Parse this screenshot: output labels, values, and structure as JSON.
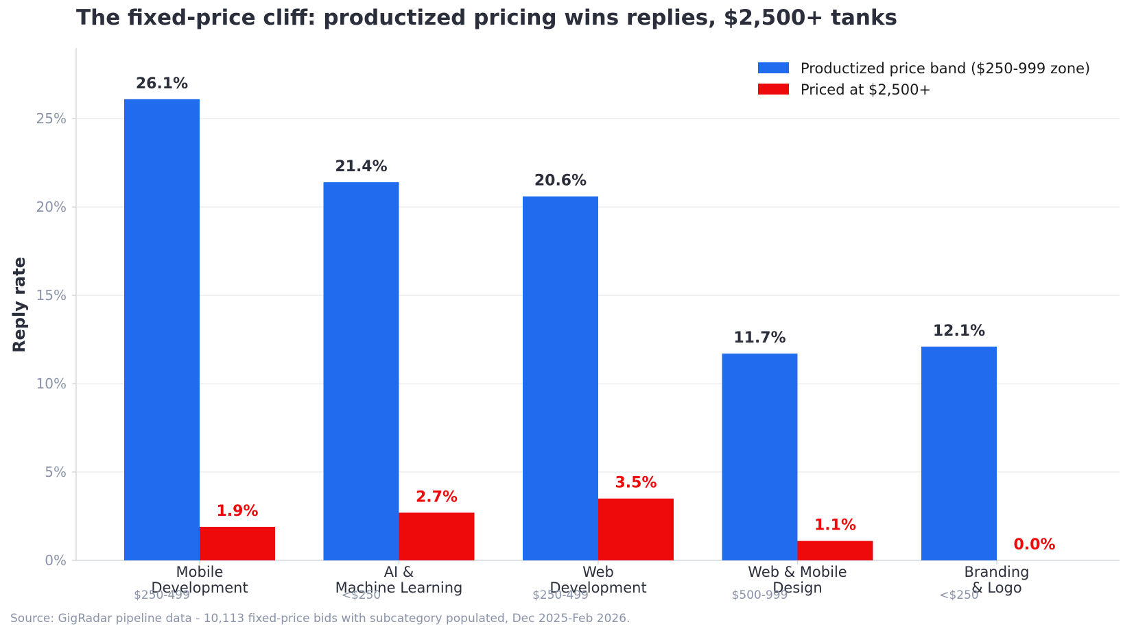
{
  "chart_data": {
    "type": "bar",
    "title": "The fixed-price cliff: productized pricing wins replies, $2,500+ tanks",
    "ylabel": "Reply rate",
    "xlabel": "",
    "ylim": [
      0,
      29
    ],
    "yticks": [
      0,
      5,
      10,
      15,
      20,
      25
    ],
    "ytick_labels": [
      "0%",
      "5%",
      "10%",
      "15%",
      "20%",
      "25%"
    ],
    "grid": "horizontal",
    "legend_position": "top-right",
    "categories": [
      [
        "Mobile",
        "Development"
      ],
      [
        "AI &",
        "Machine Learning"
      ],
      [
        "Web",
        "Development"
      ],
      [
        "Web & Mobile",
        "Design"
      ],
      [
        "Branding",
        "& Logo"
      ]
    ],
    "band_labels": [
      "$250-499",
      "<$250",
      "$250-499",
      "$500-999",
      "<$250"
    ],
    "series": [
      {
        "name": "Productized price band ($250-999 zone)",
        "color": "#216BEE",
        "label_color": "#2b2f3c",
        "values": [
          26.1,
          21.4,
          20.6,
          11.7,
          12.1
        ],
        "labels": [
          "26.1%",
          "21.4%",
          "20.6%",
          "11.7%",
          "12.1%"
        ]
      },
      {
        "name": "Priced at $2,500+",
        "color": "#EE0A0A",
        "label_color": "#EE0A0A",
        "values": [
          1.9,
          2.7,
          3.5,
          1.1,
          0.0
        ],
        "labels": [
          "1.9%",
          "2.7%",
          "3.5%",
          "1.1%",
          "0.0%"
        ]
      }
    ],
    "source": "Source: GigRadar pipeline data - 10,113 fixed-price bids with subcategory populated, Dec 2025-Feb 2026."
  }
}
